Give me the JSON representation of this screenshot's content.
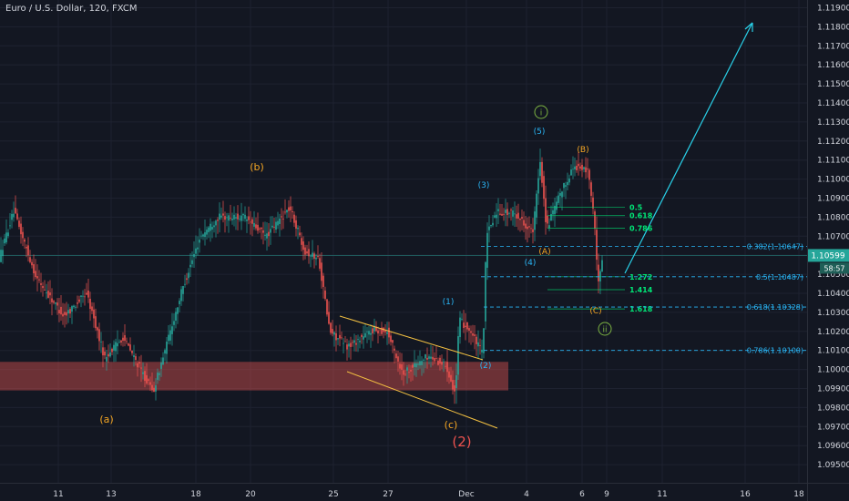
{
  "chart_data": {
    "type": "candlestick",
    "title": "Euro / U.S. Dollar, 120, FXCM",
    "y_axis": {
      "position": "right",
      "ticks": [
        "1.09500",
        "1.09600",
        "1.09700",
        "1.09800",
        "1.09900",
        "1.10000",
        "1.10100",
        "1.10200",
        "1.10300",
        "1.10400",
        "1.10500",
        "1.10600",
        "1.10700",
        "1.10800",
        "1.10900",
        "1.11000",
        "1.11100",
        "1.11200",
        "1.11300",
        "1.11400",
        "1.11500",
        "1.11600",
        "1.11700",
        "1.11800",
        "1.11900"
      ],
      "ylim": [
        1.0948,
        1.1195
      ]
    },
    "x_axis": {
      "ticks": [
        "11",
        "13",
        "18",
        "20",
        "25",
        "27",
        "Dec",
        "4",
        "6",
        "9",
        "11",
        "16",
        "18"
      ]
    },
    "current_price": {
      "value": "1.10599",
      "countdown": "58:57",
      "color": "#26a69a"
    },
    "support_zone": {
      "from": 1.0989,
      "to": 1.1004,
      "color": "#d9534f"
    },
    "colors": {
      "up": "#26a69a",
      "down": "#ef5350",
      "background": "#131722",
      "grid": "#1e2230",
      "fib_green": "#00e676",
      "fib_blue": "#29b6f6",
      "channel": "#f5c242",
      "projection": "#29d0e8"
    },
    "key_prices": [
      {
        "label": "(a)",
        "price": 1.0988
      },
      {
        "label": "(b)",
        "price": 1.1095
      },
      {
        "label": "(c)",
        "price": 1.0982
      },
      {
        "label": "(1)",
        "price": 1.1029
      },
      {
        "label": "(2)",
        "price": 1.1008
      },
      {
        "label": "(3)",
        "price": 1.109
      },
      {
        "label": "(4)",
        "price": 1.1061
      },
      {
        "label": "(5)",
        "price": 1.1116
      },
      {
        "label": "(A)",
        "price": 1.1066
      },
      {
        "label": "(B)",
        "price": 1.111
      },
      {
        "label": "(C)",
        "price": 1.104
      }
    ],
    "wave_labels": [
      {
        "text": "(a)",
        "color": "#f5a623",
        "size": 11
      },
      {
        "text": "(b)",
        "color": "#f5a623",
        "size": 11
      },
      {
        "text": "(c)",
        "color": "#f5a623",
        "size": 11
      },
      {
        "text": "(2)",
        "color": "#ef5350",
        "size": 15
      },
      {
        "text": "(1)",
        "color": "#29b6f6",
        "size": 9
      },
      {
        "text": "(2)",
        "color": "#29b6f6",
        "size": 9
      },
      {
        "text": "(3)",
        "color": "#29b6f6",
        "size": 9
      },
      {
        "text": "(4)",
        "color": "#29b6f6",
        "size": 9
      },
      {
        "text": "(5)",
        "color": "#29b6f6",
        "size": 9
      },
      {
        "text": "(A)",
        "color": "#f5a623",
        "size": 9
      },
      {
        "text": "(B)",
        "color": "#f5a623",
        "size": 9
      },
      {
        "text": "(C)",
        "color": "#f5a623",
        "size": 9
      }
    ],
    "circled_labels": [
      {
        "text": "i",
        "color": "#7cb342"
      },
      {
        "text": "ii",
        "color": "#7cb342"
      }
    ],
    "fib_extension": [
      {
        "label": "0.5",
        "price": 1.10853
      },
      {
        "label": "0.618",
        "price": 1.10808
      },
      {
        "label": "0.786",
        "price": 1.10742
      },
      {
        "label": "1.272",
        "price": 1.10487
      },
      {
        "label": "1.414",
        "price": 1.10419
      },
      {
        "label": "1.618",
        "price": 1.10318
      }
    ],
    "fib_retracement": [
      {
        "label": "0.382(1.10647)",
        "price": 1.10647
      },
      {
        "label": "0.5(1.10487)",
        "price": 1.10487
      },
      {
        "label": "0.618(1.10328)",
        "price": 1.10328
      },
      {
        "label": "0.786(1.10100)",
        "price": 1.101
      }
    ]
  }
}
